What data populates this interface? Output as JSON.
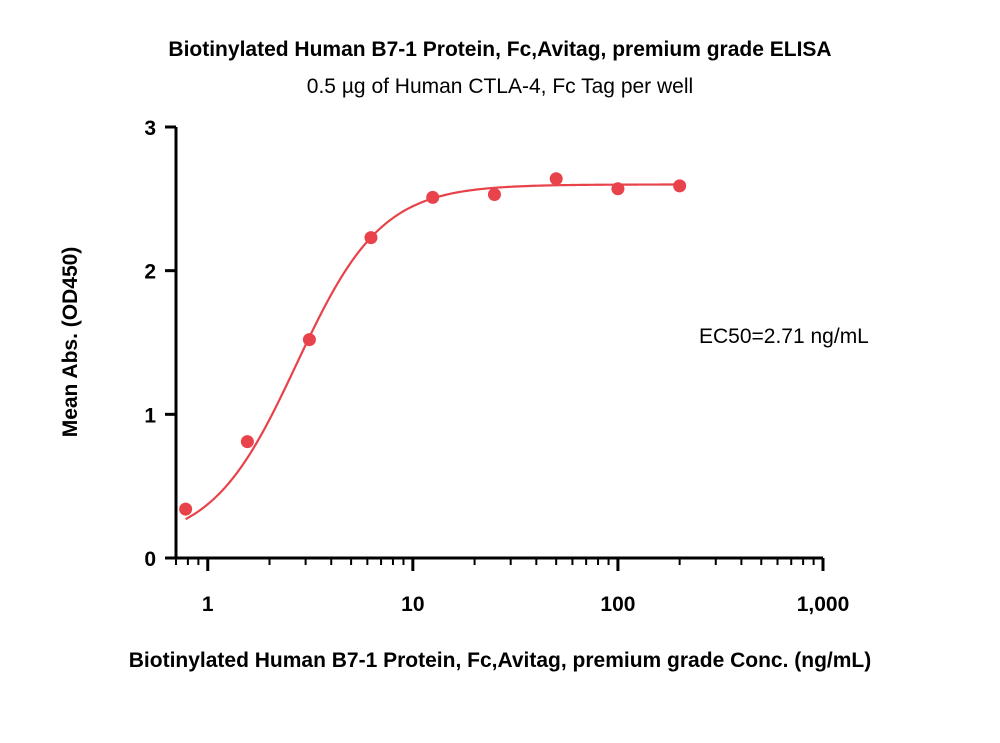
{
  "chart_data": {
    "type": "scatter",
    "title": "Biotinylated Human B7-1 Protein, Fc,Avitag, premium grade ELISA",
    "subtitle": "0.5 µg of Human CTLA-4, Fc Tag per well",
    "xlabel": "Biotinylated Human B7-1 Protein, Fc,Avitag, premium grade Conc. (ng/mL)",
    "ylabel": "Mean Abs. (OD450)",
    "x_scale": "log",
    "xlim": [
      0.7,
      1000
    ],
    "ylim": [
      0,
      3
    ],
    "x_ticks": [
      1,
      10,
      100,
      1000
    ],
    "x_tick_labels": [
      "1",
      "10",
      "100",
      "1,000"
    ],
    "y_ticks": [
      0,
      1,
      2,
      3
    ],
    "y_tick_labels": [
      "0",
      "1",
      "2",
      "3"
    ],
    "grid": false,
    "series": [
      {
        "color": "#e8424a",
        "x": [
          0.78,
          1.56,
          3.13,
          6.25,
          12.5,
          25,
          50,
          100,
          200
        ],
        "y": [
          0.34,
          0.81,
          1.52,
          2.23,
          2.51,
          2.53,
          2.64,
          2.57,
          2.59
        ],
        "fit": {
          "model": "4PL",
          "bottom": 0.1,
          "top": 2.6,
          "ec50": 2.71,
          "hill": 2.1
        }
      }
    ],
    "annotations": [
      {
        "text": "EC50=2.71 ng/mL"
      }
    ]
  }
}
